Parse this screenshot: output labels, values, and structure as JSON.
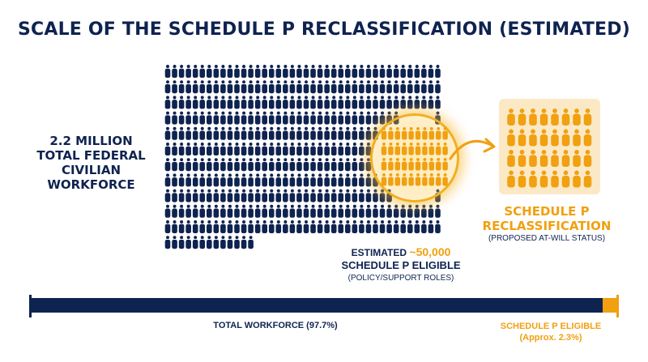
{
  "title": "SCALE OF THE SCHEDULE P RECLASSIFICATION (ESTIMATED)",
  "workforce_label": [
    "2.2 MILLION",
    "TOTAL FEDERAL",
    "CIVILIAN",
    "WORKFORCE"
  ],
  "eligible_title": [
    "SCHEDULE P",
    "RECLASSIFICATION"
  ],
  "eligible_sub": "(PROPOSED AT-WILL STATUS)",
  "estimate": {
    "prefix": "ESTIMATED ",
    "number": "~50,000",
    "line2": "SCHEDULE P ELIGIBLE",
    "line3": "(POLICY/SUPPORT ROLES)"
  },
  "bar": {
    "total_percent": 97.7,
    "eligible_percent": 2.3,
    "left_label": "TOTAL WORKFORCE (97.7%)",
    "right_label": [
      "SCHEDULE P ELIGIBLE",
      "(Approx. 2.3%)"
    ]
  },
  "colors": {
    "navy": "#0f2350",
    "gold": "#f0a010",
    "card": "#fbe9c6"
  },
  "icons": {
    "person": "person-icon",
    "arrow": "curved-arrow-icon"
  }
}
